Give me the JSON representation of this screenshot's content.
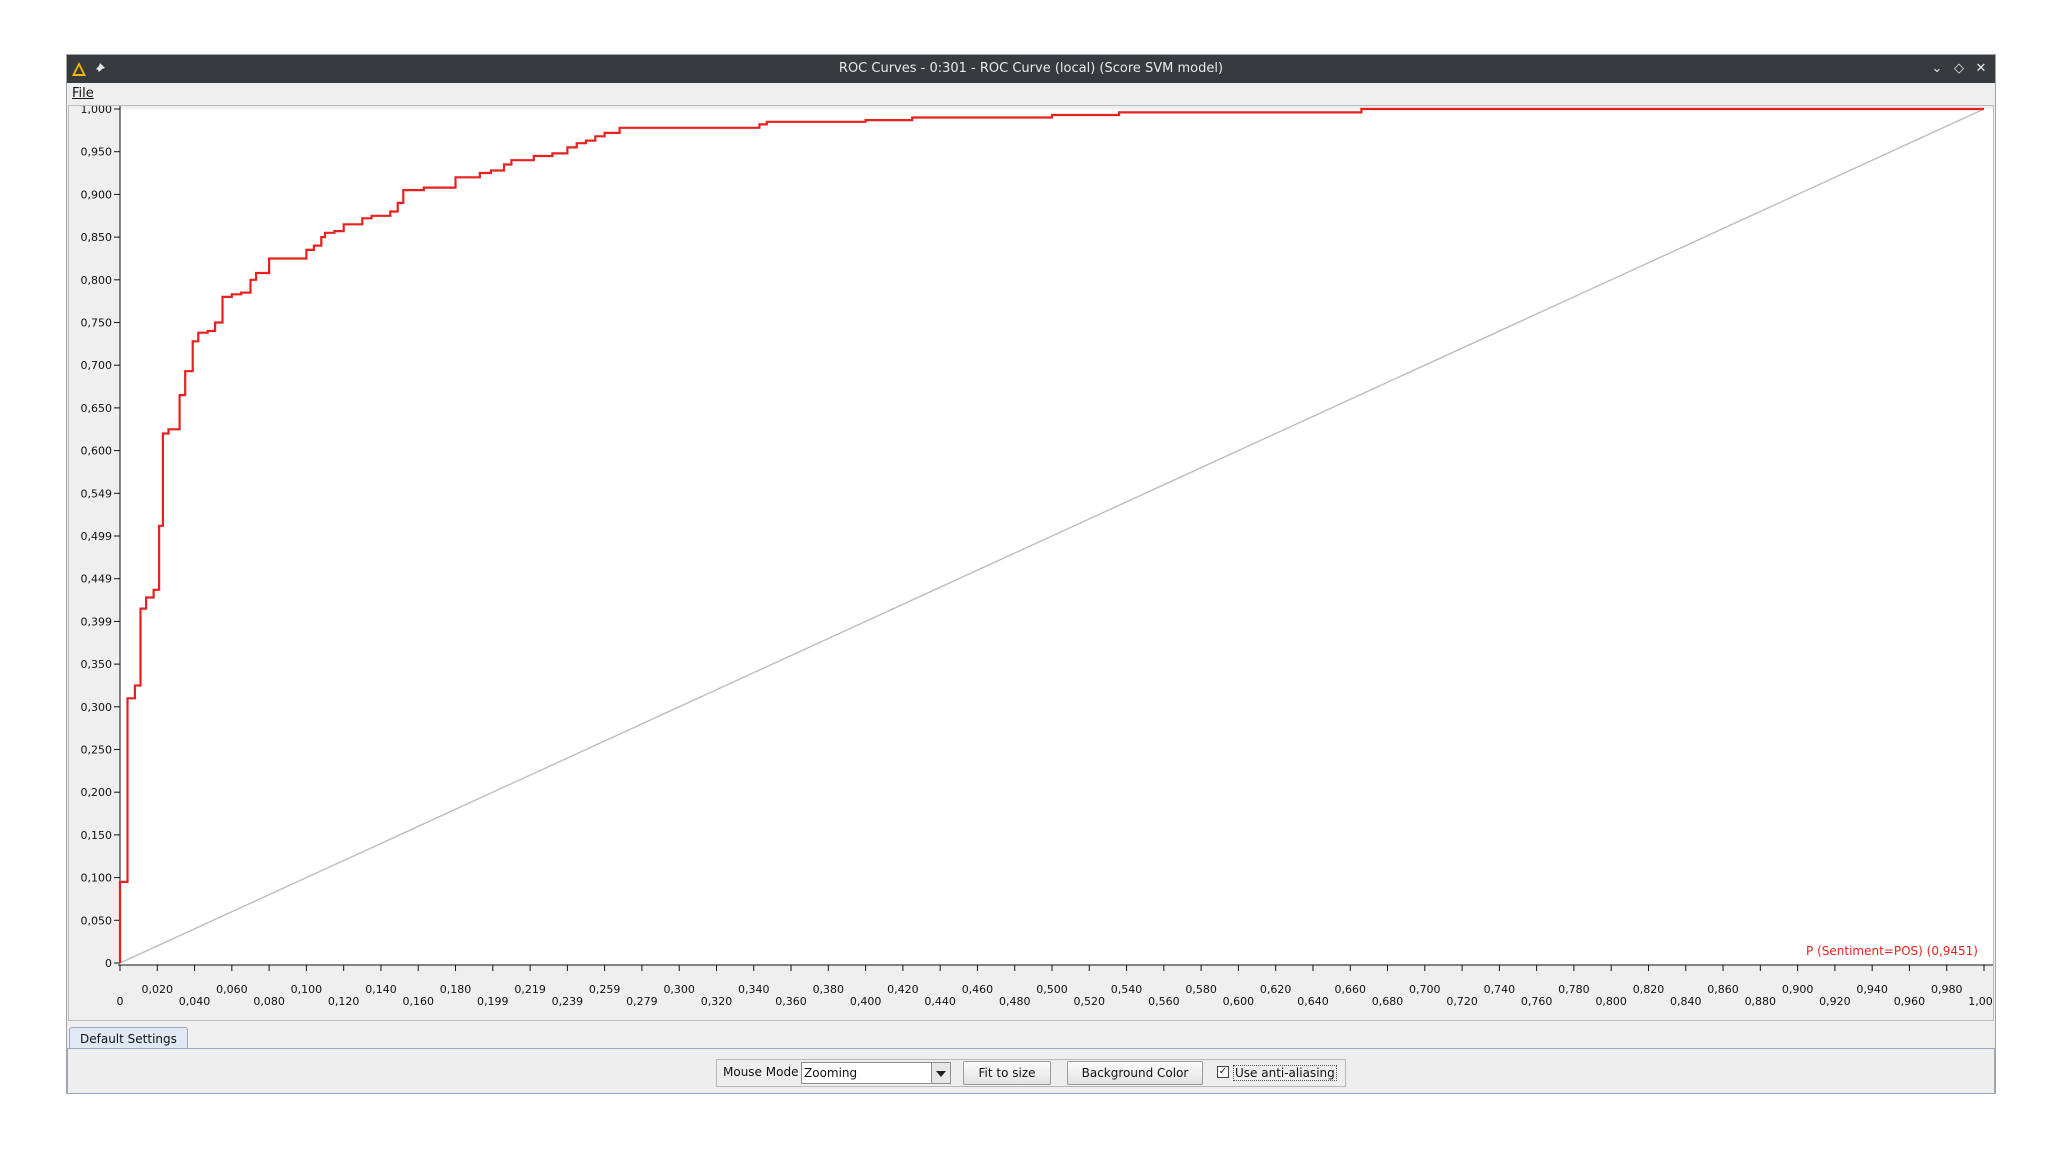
{
  "window": {
    "title": "ROC Curves - 0:301 - ROC Curve (local) (Score SVM model)",
    "icons": [
      "knime-warning-icon",
      "pin-icon"
    ],
    "controls": [
      "minimize-icon",
      "restore-icon",
      "close-icon"
    ]
  },
  "menu": {
    "file_label": "File"
  },
  "chart_data": {
    "type": "line",
    "title": "",
    "xlabel": "",
    "ylabel": "",
    "xlim": [
      0,
      1
    ],
    "ylim": [
      0,
      1
    ],
    "grid": false,
    "legend": {
      "placement": "bottom-right",
      "entries": [
        "P (Sentiment=POS) (0,9451)"
      ]
    },
    "x_ticks": [
      "0",
      "0,020",
      "0,040",
      "0,060",
      "0,080",
      "0,100",
      "0,120",
      "0,140",
      "0,160",
      "0,180",
      "0,199",
      "0,219",
      "0,239",
      "0,259",
      "0,279",
      "0,300",
      "0,320",
      "0,340",
      "0,360",
      "0,380",
      "0,400",
      "0,420",
      "0,440",
      "0,460",
      "0,480",
      "0,500",
      "0,520",
      "0,540",
      "0,560",
      "0,580",
      "0,600",
      "0,620",
      "0,640",
      "0,660",
      "0,680",
      "0,700",
      "0,720",
      "0,740",
      "0,760",
      "0,780",
      "0,800",
      "0,820",
      "0,840",
      "0,860",
      "0,880",
      "0,900",
      "0,920",
      "0,940",
      "0,960",
      "0,980",
      "1,000"
    ],
    "y_ticks": [
      "0",
      "0,050",
      "0,100",
      "0,150",
      "0,200",
      "0,250",
      "0,300",
      "0,350",
      "0,399",
      "0,449",
      "0,499",
      "0,549",
      "0,600",
      "0,650",
      "0,700",
      "0,750",
      "0,800",
      "0,850",
      "0,900",
      "0,950",
      "1,000"
    ],
    "series": [
      {
        "name": "P (Sentiment=POS) (0,9451)",
        "color": "#e8211e",
        "style": "step",
        "points": [
          [
            0,
            0
          ],
          [
            0,
            0.095
          ],
          [
            0.004,
            0.095
          ],
          [
            0.004,
            0.31
          ],
          [
            0.008,
            0.31
          ],
          [
            0.008,
            0.325
          ],
          [
            0.011,
            0.325
          ],
          [
            0.011,
            0.415
          ],
          [
            0.014,
            0.415
          ],
          [
            0.014,
            0.428
          ],
          [
            0.018,
            0.428
          ],
          [
            0.018,
            0.437
          ],
          [
            0.021,
            0.437
          ],
          [
            0.021,
            0.512
          ],
          [
            0.023,
            0.512
          ],
          [
            0.023,
            0.62
          ],
          [
            0.026,
            0.62
          ],
          [
            0.026,
            0.625
          ],
          [
            0.032,
            0.625
          ],
          [
            0.032,
            0.665
          ],
          [
            0.035,
            0.665
          ],
          [
            0.035,
            0.693
          ],
          [
            0.039,
            0.693
          ],
          [
            0.039,
            0.728
          ],
          [
            0.042,
            0.728
          ],
          [
            0.042,
            0.738
          ],
          [
            0.047,
            0.738
          ],
          [
            0.047,
            0.74
          ],
          [
            0.051,
            0.74
          ],
          [
            0.051,
            0.75
          ],
          [
            0.055,
            0.75
          ],
          [
            0.055,
            0.78
          ],
          [
            0.06,
            0.78
          ],
          [
            0.06,
            0.783
          ],
          [
            0.065,
            0.783
          ],
          [
            0.065,
            0.785
          ],
          [
            0.07,
            0.785
          ],
          [
            0.07,
            0.8
          ],
          [
            0.073,
            0.8
          ],
          [
            0.073,
            0.808
          ],
          [
            0.08,
            0.808
          ],
          [
            0.08,
            0.825
          ],
          [
            0.1,
            0.825
          ],
          [
            0.1,
            0.835
          ],
          [
            0.104,
            0.835
          ],
          [
            0.104,
            0.84
          ],
          [
            0.108,
            0.84
          ],
          [
            0.108,
            0.85
          ],
          [
            0.11,
            0.85
          ],
          [
            0.11,
            0.855
          ],
          [
            0.115,
            0.855
          ],
          [
            0.115,
            0.857
          ],
          [
            0.12,
            0.857
          ],
          [
            0.12,
            0.865
          ],
          [
            0.13,
            0.865
          ],
          [
            0.13,
            0.872
          ],
          [
            0.135,
            0.872
          ],
          [
            0.135,
            0.875
          ],
          [
            0.145,
            0.875
          ],
          [
            0.145,
            0.88
          ],
          [
            0.149,
            0.88
          ],
          [
            0.149,
            0.89
          ],
          [
            0.152,
            0.89
          ],
          [
            0.152,
            0.905
          ],
          [
            0.163,
            0.905
          ],
          [
            0.163,
            0.908
          ],
          [
            0.18,
            0.908
          ],
          [
            0.18,
            0.92
          ],
          [
            0.193,
            0.92
          ],
          [
            0.193,
            0.925
          ],
          [
            0.199,
            0.925
          ],
          [
            0.199,
            0.928
          ],
          [
            0.206,
            0.928
          ],
          [
            0.206,
            0.935
          ],
          [
            0.21,
            0.935
          ],
          [
            0.21,
            0.94
          ],
          [
            0.222,
            0.94
          ],
          [
            0.222,
            0.945
          ],
          [
            0.232,
            0.945
          ],
          [
            0.232,
            0.948
          ],
          [
            0.24,
            0.948
          ],
          [
            0.24,
            0.955
          ],
          [
            0.245,
            0.955
          ],
          [
            0.245,
            0.96
          ],
          [
            0.25,
            0.96
          ],
          [
            0.25,
            0.963
          ],
          [
            0.255,
            0.963
          ],
          [
            0.255,
            0.968
          ],
          [
            0.26,
            0.968
          ],
          [
            0.26,
            0.972
          ],
          [
            0.268,
            0.972
          ],
          [
            0.268,
            0.978
          ],
          [
            0.343,
            0.978
          ],
          [
            0.343,
            0.982
          ],
          [
            0.347,
            0.982
          ],
          [
            0.347,
            0.985
          ],
          [
            0.4,
            0.985
          ],
          [
            0.4,
            0.987
          ],
          [
            0.425,
            0.987
          ],
          [
            0.425,
            0.99
          ],
          [
            0.5,
            0.99
          ],
          [
            0.5,
            0.993
          ],
          [
            0.536,
            0.993
          ],
          [
            0.536,
            0.996
          ],
          [
            0.666,
            0.996
          ],
          [
            0.666,
            1
          ],
          [
            1,
            1
          ]
        ]
      },
      {
        "name": "",
        "color": "#bdbdbd",
        "style": "line",
        "points": [
          [
            0,
            0
          ],
          [
            1,
            1
          ]
        ]
      }
    ]
  },
  "tabs": [
    {
      "label": "Default Settings"
    }
  ],
  "controls": {
    "mouse_mode_label": "Mouse Mode",
    "mouse_mode_value": "Zooming",
    "fit_button": "Fit to size",
    "background_button": "Background Color",
    "antialias_label": "Use anti-aliasing",
    "antialias_checked": true
  }
}
